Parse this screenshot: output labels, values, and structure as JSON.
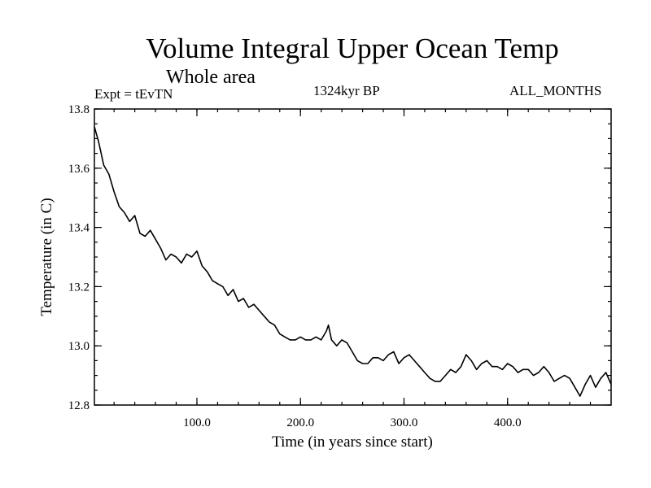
{
  "header": {
    "title": "Volume Integral Upper Ocean Temp",
    "subtitle": "Whole area",
    "experiment": "Expt = tEvTN",
    "period": "1324kyr BP",
    "months": "ALL_MONTHS"
  },
  "chart_data": {
    "type": "line",
    "title": "Volume Integral Upper Ocean Temp",
    "xlabel": "Time (in years since start)",
    "ylabel": "Temperature (in C)",
    "xlim": [
      1,
      500
    ],
    "ylim": [
      12.8,
      13.8
    ],
    "xticks": [
      100,
      200,
      300,
      400
    ],
    "xtick_labels": [
      "100.0",
      "200.0",
      "300.0",
      "400.0"
    ],
    "yticks": [
      12.8,
      13.0,
      13.2,
      13.4,
      13.6,
      13.8
    ],
    "ytick_labels": [
      "12.8",
      "13.0",
      "13.2",
      "13.4",
      "13.6",
      "13.8"
    ],
    "series": [
      {
        "name": "Temperature",
        "x": [
          1,
          5,
          10,
          15,
          20,
          25,
          30,
          35,
          40,
          45,
          50,
          55,
          60,
          65,
          70,
          75,
          80,
          85,
          90,
          95,
          100,
          105,
          110,
          115,
          120,
          125,
          130,
          135,
          140,
          145,
          150,
          155,
          160,
          165,
          170,
          175,
          180,
          185,
          190,
          195,
          200,
          205,
          210,
          215,
          220,
          225,
          227,
          230,
          235,
          240,
          245,
          250,
          255,
          260,
          265,
          270,
          275,
          280,
          285,
          290,
          295,
          300,
          305,
          310,
          315,
          320,
          325,
          330,
          335,
          340,
          345,
          350,
          355,
          360,
          365,
          370,
          375,
          380,
          385,
          390,
          395,
          400,
          405,
          410,
          415,
          420,
          425,
          430,
          435,
          440,
          445,
          450,
          455,
          460,
          465,
          470,
          475,
          480,
          485,
          490,
          495,
          500
        ],
        "values": [
          13.74,
          13.69,
          13.61,
          13.58,
          13.52,
          13.47,
          13.45,
          13.42,
          13.44,
          13.38,
          13.37,
          13.39,
          13.36,
          13.33,
          13.29,
          13.31,
          13.3,
          13.28,
          13.31,
          13.3,
          13.32,
          13.27,
          13.25,
          13.22,
          13.21,
          13.2,
          13.17,
          13.19,
          13.15,
          13.16,
          13.13,
          13.14,
          13.12,
          13.1,
          13.08,
          13.07,
          13.04,
          13.03,
          13.02,
          13.02,
          13.03,
          13.02,
          13.02,
          13.03,
          13.02,
          13.05,
          13.07,
          13.02,
          13.0,
          13.02,
          13.01,
          12.98,
          12.95,
          12.94,
          12.94,
          12.96,
          12.96,
          12.95,
          12.97,
          12.98,
          12.94,
          12.96,
          12.97,
          12.95,
          12.93,
          12.91,
          12.89,
          12.88,
          12.88,
          12.9,
          12.92,
          12.91,
          12.93,
          12.97,
          12.95,
          12.92,
          12.94,
          12.95,
          12.93,
          12.93,
          12.92,
          12.94,
          12.93,
          12.91,
          12.92,
          12.92,
          12.9,
          12.91,
          12.93,
          12.91,
          12.88,
          12.89,
          12.9,
          12.89,
          12.86,
          12.83,
          12.87,
          12.9,
          12.86,
          12.89,
          12.91,
          12.87
        ]
      }
    ]
  }
}
